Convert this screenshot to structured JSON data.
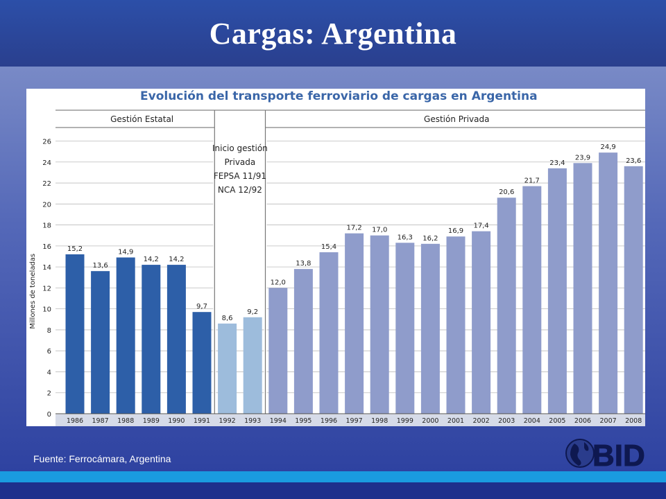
{
  "slide": {
    "title": "Cargas: Argentina",
    "source": "Fuente: Ferrocámara, Argentina",
    "logo_text": "BID"
  },
  "colors": {
    "state_bar": "#2d5fa8",
    "transition_bar": "#9dbcdc",
    "private_bar": "#8f9ccb",
    "title_text": "#3a66a8",
    "accent_band": "#1a9be0"
  },
  "chart_data": {
    "type": "bar",
    "title": "Evolución del transporte ferroviario de cargas en Argentina",
    "ylabel": "Millones de toneladas",
    "xlabel": "",
    "ylim": [
      0,
      26
    ],
    "yticks": [
      0,
      2,
      4,
      6,
      8,
      10,
      12,
      14,
      16,
      18,
      20,
      22,
      24,
      26
    ],
    "grid": true,
    "categories": [
      "1986",
      "1987",
      "1988",
      "1989",
      "1990",
      "1991",
      "1992",
      "1993",
      "1994",
      "1995",
      "1996",
      "1997",
      "1998",
      "1999",
      "2000",
      "2001",
      "2002",
      "2003",
      "2004",
      "2005",
      "2006",
      "2007",
      "2008"
    ],
    "values": [
      15.2,
      13.6,
      14.9,
      14.2,
      14.2,
      9.7,
      8.6,
      9.2,
      12.0,
      13.8,
      15.4,
      17.2,
      17.0,
      16.3,
      16.2,
      16.9,
      17.4,
      20.6,
      21.7,
      23.4,
      23.9,
      24.9,
      23.6
    ],
    "value_labels": [
      "15,2",
      "13,6",
      "14,9",
      "14,2",
      "14,2",
      "9,7",
      "8,6",
      "9,2",
      "12,0",
      "13,8",
      "15,4",
      "17,2",
      "17,0",
      "16,3",
      "16,2",
      "16,9",
      "17,4",
      "20,6",
      "21,7",
      "23,4",
      "23,9",
      "24,9",
      "23,6"
    ],
    "segments": [
      {
        "label": "Gestión Estatal",
        "from": "1986",
        "to": "1991"
      },
      {
        "label": "",
        "from": "1992",
        "to": "1993"
      },
      {
        "label": "Gestión Privada",
        "from": "1994",
        "to": "2008"
      }
    ],
    "annotation": [
      "Inicio gestión",
      "Privada",
      "FEPSA 11/91",
      "NCA 12/92"
    ]
  }
}
